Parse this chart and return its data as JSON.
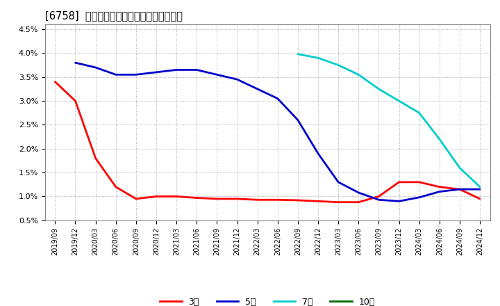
{
  "title": "[6758]  経常利益マージンの標準偏差の推移",
  "background_color": "#ffffff",
  "plot_bg_color": "#ffffff",
  "grid_color": "#999999",
  "ylim": [
    0.005,
    0.046
  ],
  "yticks": [
    0.005,
    0.01,
    0.015,
    0.02,
    0.025,
    0.03,
    0.035,
    0.04,
    0.045
  ],
  "ytick_labels": [
    "0.5%",
    "1.0%",
    "1.5%",
    "2.0%",
    "2.5%",
    "3.0%",
    "3.5%",
    "4.0%",
    "4.5%"
  ],
  "series": {
    "3year": {
      "color": "#ff0000",
      "label": "3年",
      "x": [
        0,
        1,
        2,
        3,
        4,
        5,
        6,
        7,
        8,
        9,
        10,
        11,
        12,
        13,
        14,
        15,
        16,
        17,
        18,
        19,
        20,
        21
      ],
      "values": [
        0.034,
        0.03,
        0.018,
        0.012,
        0.0095,
        0.01,
        0.01,
        0.0097,
        0.0095,
        0.0095,
        0.0093,
        0.0093,
        0.0092,
        0.009,
        0.0088,
        0.0088,
        0.01,
        0.013,
        0.013,
        0.012,
        0.0115,
        0.0095
      ]
    },
    "5year": {
      "color": "#0000cc",
      "label": "5年",
      "x": [
        1,
        2,
        3,
        4,
        5,
        6,
        7,
        8,
        9,
        10,
        11,
        12,
        13,
        14,
        15,
        16,
        17,
        18,
        19,
        20,
        21
      ],
      "values": [
        0.038,
        0.037,
        0.0355,
        0.0355,
        0.036,
        0.0365,
        0.0365,
        0.0355,
        0.0345,
        0.0325,
        0.0305,
        0.026,
        0.019,
        0.013,
        0.0108,
        0.0093,
        0.009,
        0.0098,
        0.011,
        0.0115,
        0.0115
      ]
    },
    "7year": {
      "color": "#00cccc",
      "label": "7年",
      "x": [
        12,
        13,
        14,
        15,
        16,
        17,
        18,
        19,
        20,
        21
      ],
      "values": [
        0.0398,
        0.039,
        0.0375,
        0.0355,
        0.0325,
        0.03,
        0.0275,
        0.022,
        0.016,
        0.012
      ]
    },
    "10year": {
      "color": "#006600",
      "label": "10年",
      "x": [],
      "values": []
    }
  },
  "legend_labels": [
    "3年",
    "5年",
    "7年",
    "10年"
  ],
  "legend_colors": [
    "#ff0000",
    "#0000cc",
    "#00cccc",
    "#006600"
  ],
  "xtick_labels": [
    "2019/09",
    "2019/12",
    "2020/03",
    "2020/06",
    "2020/09",
    "2020/12",
    "2021/03",
    "2021/06",
    "2021/09",
    "2021/12",
    "2022/03",
    "2022/06",
    "2022/09",
    "2022/12",
    "2023/03",
    "2023/06",
    "2023/09",
    "2023/12",
    "2024/03",
    "2024/06",
    "2024/09",
    "2024/12"
  ]
}
